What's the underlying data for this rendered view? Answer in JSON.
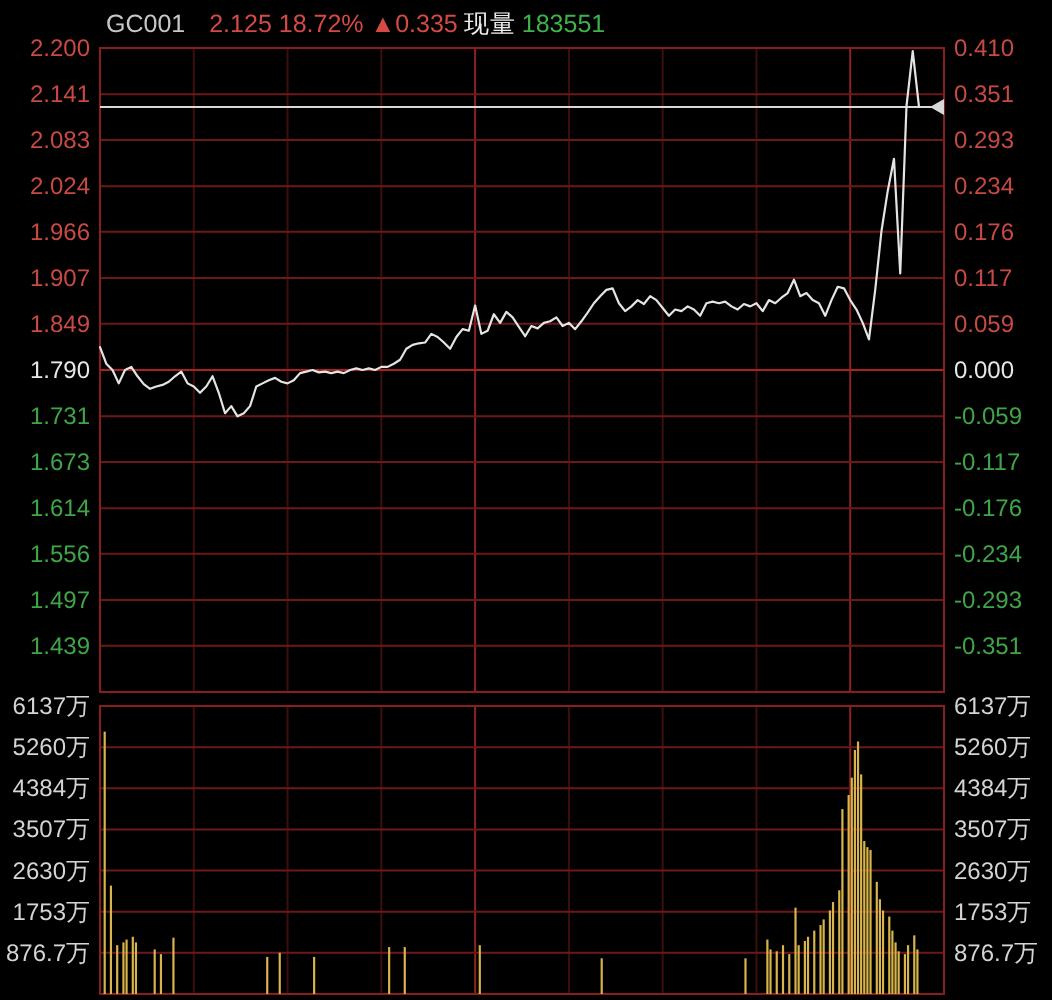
{
  "chart_data": [
    {
      "type": "line",
      "title": "GC001",
      "annotations": [
        "2.125 18.72% ▲0.335",
        "现量",
        "183551"
      ],
      "categories": [
        null,
        null,
        null,
        null,
        null,
        null,
        null,
        null,
        null,
        null,
        null,
        null,
        null,
        null,
        null,
        null,
        null,
        null,
        null,
        null,
        null,
        null,
        null,
        null,
        null,
        null,
        null,
        null,
        null,
        null,
        null,
        null,
        null,
        null,
        null,
        null,
        null,
        null,
        null,
        null,
        null,
        null,
        null,
        null,
        null,
        null,
        null,
        null,
        null,
        null,
        null,
        null,
        null,
        null,
        null,
        null,
        null,
        null,
        null,
        null,
        null,
        null,
        null,
        null,
        null,
        null,
        null,
        null,
        null,
        null,
        null,
        null,
        null,
        null,
        null,
        null,
        null,
        null,
        null,
        null,
        null,
        null,
        null,
        null,
        null,
        null,
        null,
        null,
        null,
        null,
        null,
        null,
        null,
        null,
        null,
        null,
        null,
        null,
        null,
        null,
        null,
        null,
        null,
        null,
        null,
        null,
        null,
        null,
        null,
        null,
        null,
        null,
        null,
        null,
        null,
        null,
        null,
        null,
        null,
        null,
        null,
        null,
        null,
        null,
        null,
        null,
        null,
        null,
        null,
        null,
        null,
        null,
        null,
        null,
        null
      ],
      "series": [
        {
          "color": "#e4e4e4",
          "values": [
            1.819,
            1.798,
            1.79,
            1.773,
            1.79,
            1.794,
            1.782,
            1.772,
            1.766,
            1.769,
            1.771,
            1.775,
            1.782,
            1.788,
            1.773,
            1.769,
            1.761,
            1.769,
            1.782,
            1.761,
            1.735,
            1.744,
            1.731,
            1.735,
            1.744,
            1.769,
            1.773,
            1.777,
            1.78,
            1.775,
            1.773,
            1.777,
            1.786,
            1.788,
            1.79,
            1.787,
            1.788,
            1.786,
            1.788,
            1.786,
            1.79,
            1.792,
            1.79,
            1.792,
            1.79,
            1.794,
            1.794,
            1.798,
            1.803,
            1.817,
            1.822,
            1.824,
            1.825,
            1.836,
            1.832,
            1.825,
            1.817,
            1.832,
            1.842,
            1.84,
            1.872,
            1.836,
            1.84,
            1.861,
            1.85,
            1.864,
            1.857,
            1.845,
            1.833,
            1.846,
            1.843,
            1.85,
            1.852,
            1.857,
            1.846,
            1.85,
            1.842,
            1.852,
            1.863,
            1.875,
            1.884,
            1.892,
            1.894,
            1.875,
            1.865,
            1.871,
            1.879,
            1.874,
            1.884,
            1.879,
            1.869,
            1.859,
            1.867,
            1.865,
            1.871,
            1.867,
            1.859,
            1.875,
            1.877,
            1.875,
            1.877,
            1.871,
            1.867,
            1.874,
            1.871,
            1.875,
            1.865,
            1.879,
            1.875,
            1.882,
            1.888,
            1.905,
            1.884,
            1.888,
            1.879,
            1.875,
            1.859,
            1.879,
            1.896,
            1.894,
            1.879,
            1.867,
            1.85,
            1.829,
            1.892,
            1.967,
            2.018,
            2.059,
            1.913,
            2.126,
            2.196,
            2.125,
            null,
            null,
            null
          ]
        }
      ],
      "ylim": [
        1.38,
        2.2
      ],
      "yticks": [
        {
          "value": 2.2,
          "label": "2.200"
        },
        2.141,
        2.083,
        2.024,
        1.966,
        1.907,
        1.849,
        {
          "value": 1.79,
          "label": "1.790"
        },
        1.731,
        1.673,
        1.614,
        1.556,
        1.497,
        1.439
      ],
      "y2lim": [
        -0.41,
        0.41
      ],
      "y2ticks": [
        {
          "value": 0.41,
          "label": "0.410"
        },
        0.351,
        0.293,
        0.234,
        0.176,
        0.117,
        0.059,
        {
          "value": 0,
          "label": "0.000"
        },
        -0.059,
        -0.117,
        -0.176,
        -0.234,
        -0.293,
        -0.351
      ],
      "ref_lines": [
        {
          "axis": "y",
          "value": 1.79,
          "color": "#a82222"
        },
        {
          "axis": "y",
          "value": 2.125,
          "color": "#d8d8d8"
        }
      ],
      "grid": true,
      "tick_labels": "y"
    },
    {
      "type": "bar",
      "categories": [
        null,
        null,
        null,
        null,
        null,
        null,
        null,
        null,
        null,
        null,
        null,
        null,
        null,
        null,
        null,
        null,
        null,
        null,
        null,
        null,
        null,
        null,
        null,
        null,
        null,
        null,
        null,
        null,
        null,
        null,
        null,
        null,
        null,
        null,
        null,
        null,
        null,
        null,
        null,
        null,
        null,
        null,
        null,
        null,
        null,
        null,
        null,
        null,
        null,
        null,
        null,
        null,
        null,
        null,
        null,
        null,
        null,
        null,
        null,
        null,
        null,
        null,
        null,
        null,
        null,
        null,
        null,
        null,
        null,
        null,
        null,
        null,
        null,
        null,
        null,
        null,
        null,
        null,
        null,
        null,
        null,
        null,
        null,
        null,
        null,
        null,
        null,
        null,
        null,
        null,
        null,
        null,
        null,
        null,
        null,
        null,
        null,
        null,
        null,
        null,
        null,
        null,
        null,
        null,
        null,
        null,
        null,
        null,
        null,
        null,
        null,
        null,
        null,
        null,
        null,
        null,
        null,
        null,
        null,
        null,
        null,
        null,
        null,
        null,
        null,
        null,
        null,
        null,
        null,
        null,
        null,
        null,
        null,
        null,
        null,
        null,
        null,
        null,
        null,
        null,
        null,
        null,
        null,
        null,
        null,
        null,
        null,
        null,
        null,
        null,
        null,
        null,
        null,
        null,
        null,
        null,
        null,
        null,
        null,
        null,
        null,
        null,
        null,
        null,
        null,
        null,
        null,
        null,
        null,
        null,
        null,
        null,
        null,
        null,
        null,
        null,
        null,
        null,
        null,
        null,
        null,
        null,
        null,
        null,
        null,
        null,
        null,
        null,
        null,
        null,
        null,
        null,
        null,
        null,
        null,
        null,
        null,
        null,
        null,
        null,
        null,
        null,
        null,
        null,
        null,
        null,
        null,
        null,
        null,
        null,
        null,
        null,
        null,
        null,
        null,
        null,
        null,
        null,
        null,
        null,
        null,
        null,
        null,
        null,
        null,
        null,
        null,
        null,
        null,
        null,
        null,
        null,
        null,
        null,
        null,
        null,
        null,
        null,
        null,
        null,
        null,
        null,
        null,
        null,
        null,
        null,
        null,
        null,
        null,
        null,
        null,
        null,
        null,
        null,
        null,
        null,
        null,
        null,
        null,
        null,
        null,
        null,
        null,
        null,
        null,
        null,
        null,
        null,
        null,
        null
      ],
      "series": [
        {
          "color": "#d8b44a",
          "values": [
            null,
            5590,
            null,
            2310,
            null,
            1040,
            null,
            1100,
            1160,
            null,
            1220,
            1100,
            null,
            null,
            null,
            null,
            null,
            950,
            null,
            850,
            null,
            null,
            null,
            1200,
            null,
            null,
            null,
            null,
            null,
            null,
            null,
            null,
            null,
            null,
            null,
            null,
            null,
            null,
            null,
            null,
            null,
            null,
            null,
            null,
            null,
            null,
            null,
            null,
            null,
            null,
            null,
            null,
            null,
            790,
            null,
            null,
            null,
            880,
            null,
            null,
            null,
            null,
            null,
            null,
            null,
            null,
            null,
            null,
            790,
            null,
            null,
            null,
            null,
            null,
            null,
            null,
            null,
            null,
            null,
            null,
            null,
            null,
            null,
            null,
            null,
            null,
            null,
            null,
            null,
            null,
            null,
            null,
            1000,
            null,
            null,
            null,
            null,
            1000,
            null,
            null,
            null,
            null,
            null,
            null,
            null,
            null,
            null,
            null,
            null,
            null,
            null,
            null,
            null,
            null,
            null,
            null,
            null,
            null,
            null,
            null,
            null,
            1040,
            null,
            null,
            null,
            null,
            null,
            null,
            null,
            null,
            null,
            null,
            null,
            null,
            null,
            null,
            null,
            null,
            null,
            null,
            null,
            null,
            null,
            null,
            null,
            null,
            null,
            null,
            null,
            null,
            null,
            null,
            null,
            null,
            null,
            null,
            null,
            null,
            null,
            null,
            760,
            null,
            null,
            null,
            null,
            null,
            null,
            null,
            null,
            null,
            null,
            null,
            null,
            null,
            null,
            null,
            null,
            null,
            null,
            null,
            null,
            null,
            null,
            null,
            null,
            null,
            null,
            null,
            null,
            null,
            null,
            null,
            null,
            null,
            null,
            null,
            null,
            null,
            null,
            null,
            null,
            null,
            null,
            null,
            null,
            null,
            760,
            null,
            null,
            null,
            null,
            null,
            null,
            1160,
            950,
            null,
            910,
            null,
            1040,
            null,
            850,
            null,
            1840,
            1040,
            null,
            1130,
            1220,
            null,
            1350,
            null,
            1470,
            1590,
            null,
            1780,
            1960,
            null,
            2210,
            3940,
            null,
            4240,
            4610,
            5200,
            5380,
            4680,
            3260,
            3130,
            3070,
            null,
            2390,
            2020,
            1780,
            null,
            1650,
            1350,
            1100,
            910,
            null,
            850,
            1040,
            null,
            1250,
            950,
            null,
            null,
            null,
            null,
            null,
            null,
            null,
            null
          ]
        }
      ],
      "ylim": [
        0,
        6137
      ],
      "yticks": [
        {
          "value": 876.7,
          "label": "876.7万"
        },
        {
          "value": 1753,
          "label": "1753万"
        },
        {
          "value": 2630,
          "label": "2630万"
        },
        {
          "value": 3507,
          "label": "3507万"
        },
        {
          "value": 4384,
          "label": "4384万"
        },
        {
          "value": 5260,
          "label": "5260万"
        },
        {
          "value": 6137,
          "label": "6137万"
        }
      ],
      "y2lim": [
        0,
        6137
      ],
      "y2ticks": [
        {
          "value": 876.7,
          "label": "876.7万"
        },
        {
          "value": 1753,
          "label": "1753万"
        },
        {
          "value": 2630,
          "label": "2630万"
        },
        {
          "value": 3507,
          "label": "3507万"
        },
        {
          "value": 4384,
          "label": "4384万"
        },
        {
          "value": 5260,
          "label": "5260万"
        },
        {
          "value": 6137,
          "label": "6137万"
        }
      ],
      "grid": true,
      "tick_labels": "y"
    }
  ]
}
